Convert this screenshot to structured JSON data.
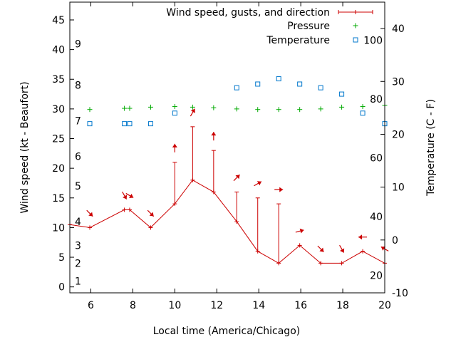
{
  "chart_data": {
    "type": "line",
    "title": "",
    "xlabel": "Local time (America/Chicago)",
    "ylabel_left": "Wind speed (kt - Beaufort)",
    "ylabel_right": "Temperature (C - F)",
    "xlim": [
      5,
      20
    ],
    "ylim_left": [
      -1,
      48
    ],
    "ylim_right": [
      -10,
      45
    ],
    "x_ticks": [
      6,
      8,
      10,
      12,
      14,
      16,
      18,
      20
    ],
    "y_ticks_left": [
      0,
      5,
      10,
      15,
      20,
      25,
      30,
      35,
      40,
      45
    ],
    "y_ticks_right": [
      -10,
      0,
      10,
      20,
      30,
      40
    ],
    "beaufort_labels": [
      {
        "label": "1",
        "speed": 1
      },
      {
        "label": "2",
        "speed": 4
      },
      {
        "label": "3",
        "speed": 7
      },
      {
        "label": "4",
        "speed": 11
      },
      {
        "label": "5",
        "speed": 17
      },
      {
        "label": "6",
        "speed": 22
      },
      {
        "label": "7",
        "speed": 28
      },
      {
        "label": "8",
        "speed": 34
      },
      {
        "label": "9",
        "speed": 41
      }
    ],
    "fahrenheit_labels": [
      {
        "label": "20",
        "temp_c": -6.67
      },
      {
        "label": "40",
        "temp_c": 4.44
      },
      {
        "label": "60",
        "temp_c": 15.56
      },
      {
        "label": "80",
        "temp_c": 26.67
      },
      {
        "label": "100",
        "temp_c": 37.78
      }
    ],
    "legend": {
      "placement": "top-right",
      "entries": [
        "Wind speed, gusts, and direction",
        "Pressure",
        "Temperature"
      ]
    },
    "series": [
      {
        "name": "Wind speed, gusts, and direction",
        "axis": "left",
        "color": "#cc0000",
        "x": [
          5.0,
          5.95,
          7.6,
          7.85,
          8.85,
          10.0,
          10.85,
          11.85,
          12.95,
          13.95,
          14.95,
          15.95,
          16.95,
          17.95,
          18.95,
          20.0
        ],
        "values": [
          10.5,
          10,
          13,
          13,
          10,
          14,
          18,
          16,
          11,
          6,
          4,
          7,
          4,
          4,
          6,
          4
        ],
        "gusts": [
          null,
          null,
          null,
          null,
          null,
          21,
          27,
          23,
          16,
          15,
          14,
          null,
          null,
          null,
          null,
          null
        ],
        "direction_arrow_deg": [
          null,
          315,
          300,
          330,
          315,
          90,
          60,
          90,
          45,
          30,
          0,
          15,
          315,
          300,
          180,
          150
        ]
      },
      {
        "name": "Pressure",
        "axis": "left",
        "color": "#00aa00",
        "x": [
          5.95,
          7.6,
          7.85,
          8.85,
          10.0,
          10.85,
          11.85,
          12.95,
          13.95,
          14.95,
          15.95,
          16.95,
          17.95,
          18.95,
          20.0
        ],
        "values": [
          29.9,
          30.1,
          30.1,
          30.3,
          30.4,
          30.3,
          30.2,
          30.0,
          29.9,
          29.9,
          29.9,
          30.0,
          30.3,
          30.4,
          30.6
        ]
      },
      {
        "name": "Temperature",
        "axis": "right",
        "color": "#0077cc",
        "x": [
          5.95,
          7.6,
          7.85,
          8.85,
          10.0,
          10.85,
          11.85,
          12.95,
          13.95,
          14.95,
          15.95,
          16.95,
          17.95,
          18.95,
          20.0
        ],
        "values": [
          22,
          22,
          22,
          22,
          24,
          null,
          null,
          28.8,
          29.5,
          30.5,
          29.5,
          28.8,
          27.6,
          24,
          22
        ]
      }
    ]
  }
}
